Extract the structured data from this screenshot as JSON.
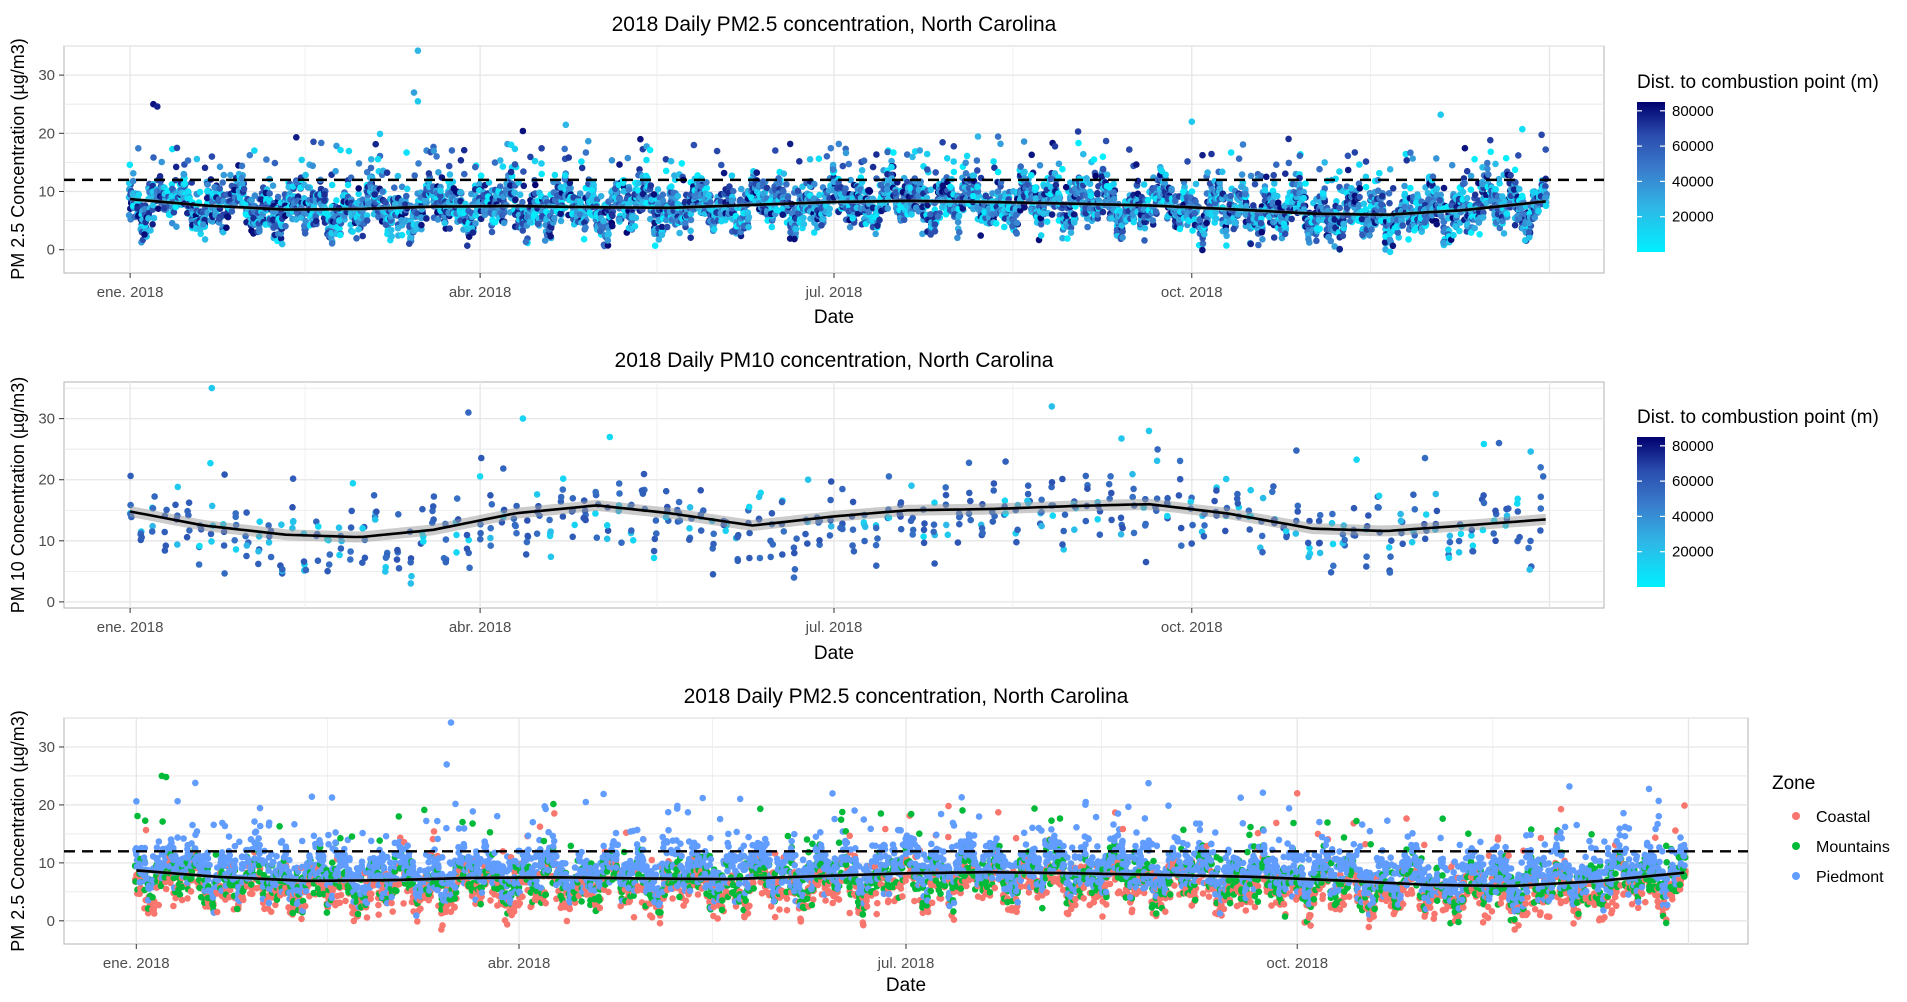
{
  "y_threshold_label_note": "",
  "chart_data": [
    {
      "type": "scatter",
      "title": "2018 Daily PM2.5 concentration, North Carolina",
      "xlabel": "Date",
      "ylabel": "PM 2.5 Concentration (µg/m3)",
      "x_ticks": [
        "ene. 2018",
        "abr. 2018",
        "jul. 2018",
        "oct. 2018"
      ],
      "x_tick_dates": [
        "2018-01-01",
        "2018-04-01",
        "2018-07-01",
        "2018-10-01"
      ],
      "xlim": [
        "2017-12-15",
        "2019-01-15"
      ],
      "ylim": [
        -4,
        35
      ],
      "y_ticks": [
        0,
        10,
        20,
        30
      ],
      "threshold_line": 12,
      "grid": true,
      "legend": {
        "title": "Dist. to combustion point (m)",
        "type": "colorbar",
        "ticks": [
          "80000",
          "60000",
          "40000",
          "20000"
        ],
        "range": [
          0,
          85000
        ],
        "low_color": "#00f0ff",
        "high_color": "#00006e",
        "placement": "right"
      },
      "trend": [
        [
          "2018-01-01",
          8.7
        ],
        [
          "2018-01-20",
          7.6
        ],
        [
          "2018-02-10",
          6.9
        ],
        [
          "2018-03-01",
          7.0
        ],
        [
          "2018-03-20",
          7.4
        ],
        [
          "2018-04-10",
          7.5
        ],
        [
          "2018-05-01",
          7.3
        ],
        [
          "2018-05-20",
          7.2
        ],
        [
          "2018-06-10",
          7.7
        ],
        [
          "2018-07-01",
          8.2
        ],
        [
          "2018-07-20",
          8.4
        ],
        [
          "2018-08-10",
          8.2
        ],
        [
          "2018-09-01",
          7.9
        ],
        [
          "2018-09-20",
          7.6
        ],
        [
          "2018-10-10",
          7.0
        ],
        [
          "2018-11-01",
          6.2
        ],
        [
          "2018-11-20",
          6.0
        ],
        [
          "2018-12-10",
          6.8
        ],
        [
          "2018-12-31",
          8.3
        ]
      ],
      "points_note": "daily values 0-25 across all sites, peaks 34 (mid-March), 25 (early Jan), 23 (early Dec)"
    },
    {
      "type": "scatter",
      "title": "2018 Daily PM10 concentration, North Carolina",
      "xlabel": "Date",
      "ylabel": "PM 10 Concentration (µg/m3)",
      "x_ticks": [
        "ene. 2018",
        "abr. 2018",
        "jul. 2018",
        "oct. 2018"
      ],
      "x_tick_dates": [
        "2018-01-01",
        "2018-04-01",
        "2018-07-01",
        "2018-10-01"
      ],
      "xlim": [
        "2017-12-15",
        "2019-01-15"
      ],
      "ylim": [
        -1,
        36
      ],
      "y_ticks": [
        0,
        10,
        20,
        30
      ],
      "grid": true,
      "legend": {
        "title": "Dist. to combustion point (m)",
        "type": "colorbar",
        "ticks": [
          "80000",
          "60000",
          "40000",
          "20000"
        ],
        "range": [
          0,
          85000
        ],
        "low_color": "#00f0ff",
        "high_color": "#00006e",
        "placement": "right"
      },
      "trend": [
        [
          "2018-01-01",
          14.8
        ],
        [
          "2018-01-20",
          12.5
        ],
        [
          "2018-02-10",
          11.0
        ],
        [
          "2018-03-01",
          10.6
        ],
        [
          "2018-03-20",
          11.8
        ],
        [
          "2018-04-10",
          14.5
        ],
        [
          "2018-05-01",
          15.8
        ],
        [
          "2018-05-20",
          14.5
        ],
        [
          "2018-06-10",
          12.5
        ],
        [
          "2018-07-01",
          14.0
        ],
        [
          "2018-07-20",
          15.0
        ],
        [
          "2018-08-10",
          15.2
        ],
        [
          "2018-09-01",
          15.7
        ],
        [
          "2018-09-20",
          16.0
        ],
        [
          "2018-10-10",
          14.5
        ],
        [
          "2018-11-01",
          12.0
        ],
        [
          "2018-11-20",
          11.6
        ],
        [
          "2018-12-10",
          12.5
        ],
        [
          "2018-12-31",
          13.5
        ]
      ],
      "points_note": "every-third-day samples 1-28, peak 35 (late Jan), 32 (late Aug), 31 (late Mar)"
    },
    {
      "type": "scatter",
      "title": "2018 Daily PM2.5 concentration, North Carolina",
      "xlabel": "Date",
      "ylabel": "PM 2.5 Concentration (µg/m3)",
      "x_ticks": [
        "ene. 2018",
        "abr. 2018",
        "jul. 2018",
        "oct. 2018"
      ],
      "x_tick_dates": [
        "2018-01-01",
        "2018-04-01",
        "2018-07-01",
        "2018-10-01"
      ],
      "xlim": [
        "2017-12-15",
        "2019-01-15"
      ],
      "ylim": [
        -4,
        35
      ],
      "y_ticks": [
        0,
        10,
        20,
        30
      ],
      "threshold_line": 12,
      "grid": true,
      "legend": {
        "title": "Zone",
        "type": "categorical",
        "placement": "right"
      },
      "series": [
        {
          "name": "Coastal",
          "color": "#f8766d",
          "level": 5.5
        },
        {
          "name": "Mountains",
          "color": "#00ba38",
          "level": 7.0
        },
        {
          "name": "Piedmont",
          "color": "#619cff",
          "level": 9.0
        }
      ],
      "trend": [
        [
          "2018-01-01",
          8.7
        ],
        [
          "2018-01-20",
          7.6
        ],
        [
          "2018-02-10",
          6.9
        ],
        [
          "2018-03-01",
          7.0
        ],
        [
          "2018-03-20",
          7.4
        ],
        [
          "2018-04-10",
          7.5
        ],
        [
          "2018-05-01",
          7.3
        ],
        [
          "2018-05-20",
          7.2
        ],
        [
          "2018-06-10",
          7.7
        ],
        [
          "2018-07-01",
          8.2
        ],
        [
          "2018-07-20",
          8.4
        ],
        [
          "2018-08-10",
          8.2
        ],
        [
          "2018-09-01",
          7.9
        ],
        [
          "2018-09-20",
          7.6
        ],
        [
          "2018-10-10",
          7.0
        ],
        [
          "2018-11-01",
          6.2
        ],
        [
          "2018-11-20",
          6.0
        ],
        [
          "2018-12-10",
          6.8
        ],
        [
          "2018-12-31",
          8.3
        ]
      ]
    }
  ]
}
